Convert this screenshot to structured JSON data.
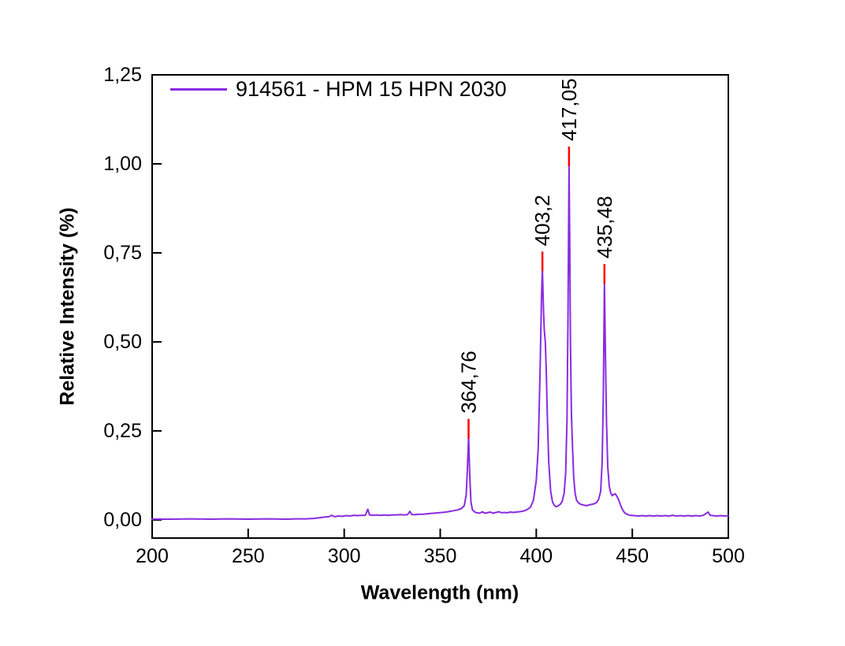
{
  "chart_data": {
    "type": "line",
    "title": "",
    "xlabel": "Wavelength (nm)",
    "ylabel": "Relative Intensity (%)",
    "xlim": [
      200,
      500
    ],
    "ylim": [
      -0.051,
      1.25
    ],
    "grid": false,
    "line_color": "#8A2BE2",
    "peak_marker_color": "#FF0000",
    "frame_color": "#000000",
    "legend": {
      "position": "top-left-inside",
      "entries": [
        {
          "label": "914561 - HPM 15 HPN 2030",
          "color": "#8A2BE2"
        }
      ]
    },
    "x_ticks": [
      {
        "value": 200,
        "label": "200"
      },
      {
        "value": 250,
        "label": "250"
      },
      {
        "value": 300,
        "label": "300"
      },
      {
        "value": 350,
        "label": "350"
      },
      {
        "value": 400,
        "label": "400"
      },
      {
        "value": 450,
        "label": "450"
      },
      {
        "value": 500,
        "label": "500"
      }
    ],
    "y_ticks": [
      {
        "value": 0.0,
        "label": "0,00"
      },
      {
        "value": 0.25,
        "label": "0,25"
      },
      {
        "value": 0.5,
        "label": "0,50"
      },
      {
        "value": 0.75,
        "label": "0,75"
      },
      {
        "value": 1.0,
        "label": "1,00"
      },
      {
        "value": 1.25,
        "label": "1,25"
      }
    ],
    "peaks": [
      {
        "label": "364,76",
        "x": 364.76,
        "y": 0.235
      },
      {
        "label": "403,2",
        "x": 403.2,
        "y": 0.705
      },
      {
        "label": "417,05",
        "x": 417.05,
        "y": 1.0
      },
      {
        "label": "435,48",
        "x": 435.48,
        "y": 0.67
      }
    ],
    "series": [
      {
        "name": "914561 - HPM 15 HPN 2030",
        "points": [
          [
            200,
            0.002
          ],
          [
            210,
            0.002
          ],
          [
            220,
            0.003
          ],
          [
            230,
            0.002
          ],
          [
            240,
            0.003
          ],
          [
            250,
            0.002
          ],
          [
            260,
            0.003
          ],
          [
            270,
            0.002
          ],
          [
            275,
            0.003
          ],
          [
            280,
            0.003
          ],
          [
            284,
            0.004
          ],
          [
            287,
            0.006
          ],
          [
            290,
            0.008
          ],
          [
            292,
            0.009
          ],
          [
            293.5,
            0.013
          ],
          [
            295,
            0.009
          ],
          [
            297,
            0.011
          ],
          [
            299,
            0.01
          ],
          [
            301,
            0.012
          ],
          [
            303,
            0.011
          ],
          [
            305,
            0.013
          ],
          [
            307,
            0.012
          ],
          [
            309,
            0.013
          ],
          [
            311,
            0.013
          ],
          [
            312.3,
            0.03
          ],
          [
            313.2,
            0.014
          ],
          [
            315,
            0.013
          ],
          [
            317,
            0.014
          ],
          [
            319,
            0.013
          ],
          [
            321,
            0.014
          ],
          [
            323,
            0.013
          ],
          [
            325,
            0.014
          ],
          [
            327,
            0.014
          ],
          [
            329,
            0.015
          ],
          [
            331,
            0.014
          ],
          [
            333,
            0.015
          ],
          [
            334.2,
            0.024
          ],
          [
            335.2,
            0.015
          ],
          [
            337,
            0.015
          ],
          [
            339,
            0.016
          ],
          [
            341,
            0.016
          ],
          [
            343,
            0.017
          ],
          [
            345,
            0.018
          ],
          [
            347,
            0.019
          ],
          [
            349,
            0.02
          ],
          [
            351,
            0.021
          ],
          [
            353,
            0.022
          ],
          [
            355,
            0.024
          ],
          [
            357,
            0.026
          ],
          [
            359,
            0.028
          ],
          [
            361,
            0.032
          ],
          [
            362.5,
            0.04
          ],
          [
            363.5,
            0.07
          ],
          [
            364.1,
            0.14
          ],
          [
            364.76,
            0.235
          ],
          [
            365.4,
            0.12
          ],
          [
            366,
            0.05
          ],
          [
            366.8,
            0.028
          ],
          [
            368,
            0.022
          ],
          [
            369,
            0.02
          ],
          [
            370.5,
            0.019
          ],
          [
            372,
            0.023
          ],
          [
            373,
            0.019
          ],
          [
            374.5,
            0.02
          ],
          [
            376,
            0.022
          ],
          [
            377.5,
            0.019
          ],
          [
            379,
            0.021
          ],
          [
            380.5,
            0.023
          ],
          [
            382,
            0.02
          ],
          [
            383.5,
            0.021
          ],
          [
            385,
            0.02
          ],
          [
            386.5,
            0.022
          ],
          [
            388,
            0.021
          ],
          [
            389.5,
            0.022
          ],
          [
            391,
            0.023
          ],
          [
            392.5,
            0.024
          ],
          [
            394,
            0.026
          ],
          [
            395.5,
            0.03
          ],
          [
            397,
            0.036
          ],
          [
            398.5,
            0.055
          ],
          [
            400,
            0.11
          ],
          [
            401,
            0.2
          ],
          [
            402,
            0.42
          ],
          [
            402.7,
            0.62
          ],
          [
            403.2,
            0.705
          ],
          [
            403.8,
            0.58
          ],
          [
            404.2,
            0.53
          ],
          [
            404.7,
            0.5
          ],
          [
            405.2,
            0.42
          ],
          [
            405.8,
            0.28
          ],
          [
            406.5,
            0.16
          ],
          [
            407.5,
            0.08
          ],
          [
            408.5,
            0.05
          ],
          [
            409.5,
            0.04
          ],
          [
            410.5,
            0.037
          ],
          [
            411.5,
            0.04
          ],
          [
            412.5,
            0.044
          ],
          [
            413.5,
            0.052
          ],
          [
            414.5,
            0.075
          ],
          [
            415.3,
            0.13
          ],
          [
            416,
            0.28
          ],
          [
            416.5,
            0.55
          ],
          [
            416.8,
            0.8
          ],
          [
            417.05,
            1.0
          ],
          [
            417.4,
            0.8
          ],
          [
            417.8,
            0.5
          ],
          [
            418.3,
            0.3
          ],
          [
            418.9,
            0.2
          ],
          [
            419.5,
            0.12
          ],
          [
            420.2,
            0.075
          ],
          [
            421,
            0.055
          ],
          [
            422,
            0.048
          ],
          [
            423,
            0.044
          ],
          [
            424.5,
            0.042
          ],
          [
            426,
            0.04
          ],
          [
            427.5,
            0.042
          ],
          [
            429,
            0.044
          ],
          [
            430.5,
            0.046
          ],
          [
            431.5,
            0.05
          ],
          [
            432.5,
            0.058
          ],
          [
            433.5,
            0.08
          ],
          [
            434.3,
            0.16
          ],
          [
            434.9,
            0.35
          ],
          [
            435.48,
            0.67
          ],
          [
            436,
            0.46
          ],
          [
            436.6,
            0.27
          ],
          [
            437.2,
            0.15
          ],
          [
            438,
            0.095
          ],
          [
            438.8,
            0.075
          ],
          [
            439.6,
            0.068
          ],
          [
            440.4,
            0.072
          ],
          [
            441.2,
            0.073
          ],
          [
            442,
            0.066
          ],
          [
            443,
            0.055
          ],
          [
            444,
            0.04
          ],
          [
            445,
            0.028
          ],
          [
            446,
            0.02
          ],
          [
            447.5,
            0.015
          ],
          [
            449,
            0.013
          ],
          [
            451,
            0.012
          ],
          [
            453,
            0.011
          ],
          [
            455,
            0.012
          ],
          [
            457,
            0.011
          ],
          [
            459,
            0.012
          ],
          [
            461,
            0.011
          ],
          [
            463,
            0.012
          ],
          [
            465,
            0.011
          ],
          [
            467,
            0.012
          ],
          [
            469,
            0.011
          ],
          [
            471,
            0.013
          ],
          [
            473,
            0.011
          ],
          [
            475,
            0.012
          ],
          [
            477,
            0.011
          ],
          [
            479,
            0.012
          ],
          [
            481,
            0.011
          ],
          [
            483,
            0.012
          ],
          [
            485,
            0.011
          ],
          [
            487,
            0.013
          ],
          [
            489.5,
            0.022
          ],
          [
            490.5,
            0.013
          ],
          [
            492,
            0.012
          ],
          [
            494,
            0.011
          ],
          [
            496,
            0.012
          ],
          [
            498,
            0.011
          ],
          [
            500,
            0.012
          ]
        ]
      }
    ]
  }
}
